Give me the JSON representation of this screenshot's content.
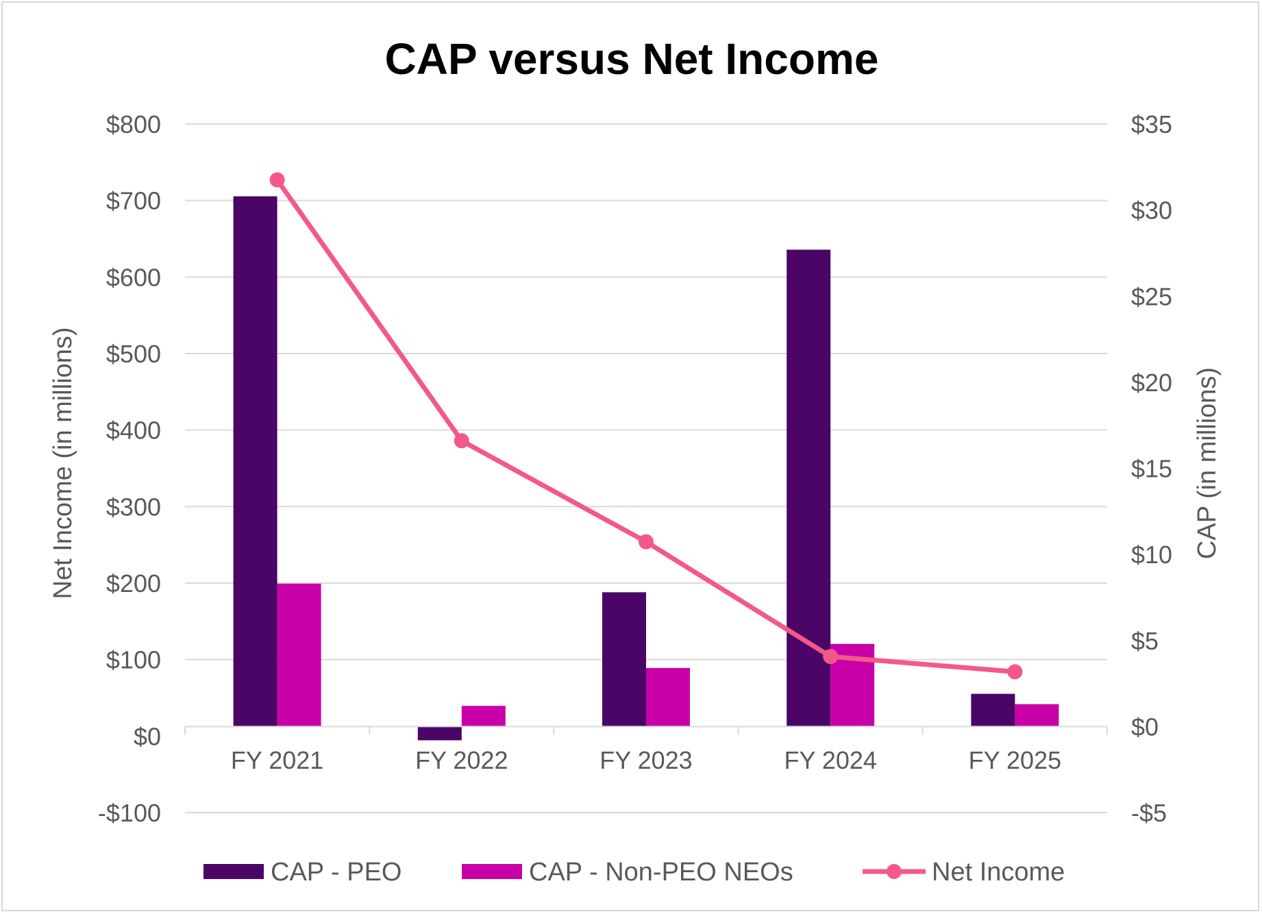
{
  "chart_data": {
    "type": "bar",
    "title": "CAP versus Net Income",
    "categories": [
      "FY 2021",
      "FY 2022",
      "FY 2023",
      "FY 2024",
      "FY 2025"
    ],
    "y_left": {
      "label": "Net Income (in millions)",
      "range": [
        -100,
        800
      ],
      "tick_values": [
        -100,
        0,
        100,
        200,
        300,
        400,
        500,
        600,
        700,
        800
      ],
      "tick_labels": [
        "-$100",
        "$0",
        "$100",
        "$200",
        "$300",
        "$400",
        "$500",
        "$600",
        "$700",
        "$800"
      ]
    },
    "y_right": {
      "label": "CAP (in millions)",
      "range": [
        -5,
        35
      ],
      "tick_values": [
        -5,
        0,
        5,
        10,
        15,
        20,
        25,
        30,
        35
      ],
      "tick_labels": [
        "-$5",
        "$0",
        "$5",
        "$10",
        "$15",
        "$20",
        "$25",
        "$30",
        "$35"
      ]
    },
    "series": [
      {
        "name": "CAP - PEO",
        "type": "bar",
        "axis": "right",
        "color": "#4a0566",
        "values": [
          30.8,
          -0.8,
          7.8,
          27.7,
          1.9
        ]
      },
      {
        "name": "CAP - Non-PEO NEOs",
        "type": "bar",
        "axis": "right",
        "color": "#c800a8",
        "values": [
          8.3,
          1.2,
          3.4,
          4.8,
          1.3
        ]
      },
      {
        "name": "Net Income",
        "type": "line",
        "axis": "left",
        "color": "#f4588a",
        "values": [
          727,
          386,
          254,
          104,
          84
        ]
      }
    ],
    "grid": true,
    "legend_position": "bottom"
  }
}
